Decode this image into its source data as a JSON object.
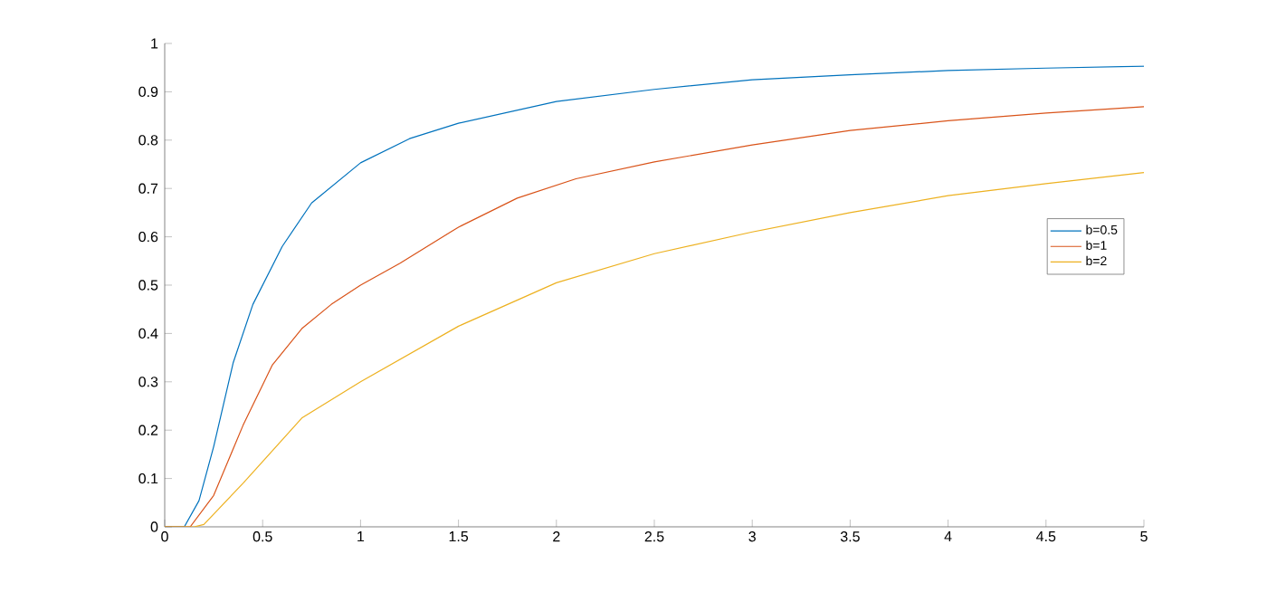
{
  "chart_data": {
    "type": "line",
    "xlim": [
      0,
      5
    ],
    "ylim": [
      0,
      1
    ],
    "xticks": [
      0,
      0.5,
      1,
      1.5,
      2,
      2.5,
      3,
      3.5,
      4,
      4.5,
      5
    ],
    "yticks": [
      0,
      0.1,
      0.2,
      0.3,
      0.4,
      0.5,
      0.6,
      0.7,
      0.8,
      0.9,
      1
    ],
    "grid": false,
    "legend": "right",
    "marker": "none",
    "line_style": "solid",
    "series": [
      {
        "name": "b=0.5",
        "color": "#0072bd",
        "x": [
          0,
          0.1,
          0.175,
          0.25,
          0.35,
          0.45,
          0.6,
          0.75,
          1,
          1.25,
          1.5,
          2,
          2.5,
          3,
          3.5,
          4,
          4.5,
          5
        ],
        "values": [
          0,
          0,
          0.054,
          0.166,
          0.34,
          0.46,
          0.58,
          0.67,
          0.753,
          0.803,
          0.835,
          0.88,
          0.905,
          0.925,
          0.935,
          0.944,
          0.949,
          0.953
        ]
      },
      {
        "name": "b=1",
        "color": "#d95319",
        "x": [
          0,
          0.13,
          0.25,
          0.4,
          0.55,
          0.7,
          0.85,
          1,
          1.2,
          1.5,
          1.8,
          2.1,
          2.5,
          3,
          3.5,
          4,
          4.5,
          5
        ],
        "values": [
          0,
          0,
          0.065,
          0.21,
          0.335,
          0.41,
          0.46,
          0.5,
          0.545,
          0.62,
          0.68,
          0.72,
          0.755,
          0.79,
          0.82,
          0.84,
          0.856,
          0.869
        ]
      },
      {
        "name": "b=2",
        "color": "#edb120",
        "x": [
          0,
          0.15,
          0.2,
          0.4,
          0.7,
          1,
          1.5,
          2,
          2.5,
          3,
          3.5,
          4,
          4.5,
          5
        ],
        "values": [
          0,
          0,
          0.005,
          0.09,
          0.225,
          0.3,
          0.415,
          0.505,
          0.565,
          0.61,
          0.65,
          0.685,
          0.71,
          0.733
        ]
      }
    ]
  }
}
